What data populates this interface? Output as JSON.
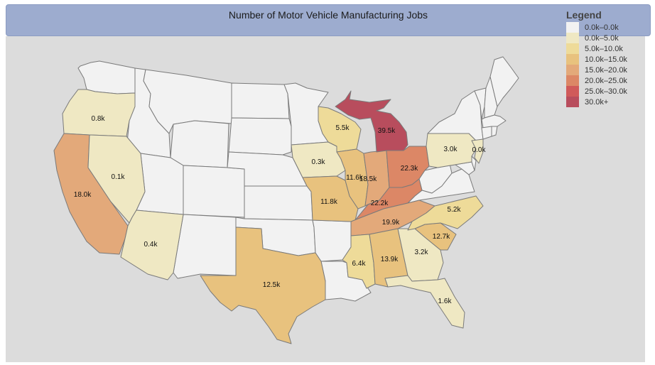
{
  "title": "Number of Motor Vehicle Manufacturing Jobs",
  "colors": {
    "none": "#f2f2f2",
    "b0": "#efe8c3",
    "b1": "#eedb99",
    "b2": "#e8c27e",
    "b3": "#e3a97a",
    "b4": "#dc8766",
    "b5": "#d05a5a",
    "b6": "#b84d5d"
  },
  "legend": {
    "title": "Legend",
    "items": [
      {
        "label": "0.0k–0.0k",
        "color": "#f2f2f2"
      },
      {
        "label": "0.0k–5.0k",
        "color": "#efe8c3"
      },
      {
        "label": "5.0k–10.0k",
        "color": "#eedb99"
      },
      {
        "label": "10.0k–15.0k",
        "color": "#e8c27e"
      },
      {
        "label": "15.0k–20.0k",
        "color": "#e3a97a"
      },
      {
        "label": "20.0k–25.0k",
        "color": "#dc8766"
      },
      {
        "label": "25.0k–30.0k",
        "color": "#d05a5a"
      },
      {
        "label": "30.0k+",
        "color": "#b84d5d"
      }
    ]
  },
  "states": [
    {
      "id": "OR",
      "label": "0.8k",
      "value": 0.8
    },
    {
      "id": "CA",
      "label": "18.0k",
      "value": 18.0
    },
    {
      "id": "NV",
      "label": "0.1k",
      "value": 0.1
    },
    {
      "id": "AZ",
      "label": "0.4k",
      "value": 0.4
    },
    {
      "id": "TX",
      "label": "12.5k",
      "value": 12.5
    },
    {
      "id": "IA",
      "label": "0.3k",
      "value": 0.3
    },
    {
      "id": "MO",
      "label": "11.8k",
      "value": 11.8
    },
    {
      "id": "WI",
      "label": "5.5k",
      "value": 5.5
    },
    {
      "id": "IL",
      "label": "11.6k",
      "value": 11.6
    },
    {
      "id": "IN",
      "label": "18.5k",
      "value": 18.5
    },
    {
      "id": "MI",
      "label": "39.5k",
      "value": 39.5
    },
    {
      "id": "OH",
      "label": "22.3k",
      "value": 22.3
    },
    {
      "id": "KY",
      "label": "22.2k",
      "value": 22.2
    },
    {
      "id": "TN",
      "label": "19.9k",
      "value": 19.9
    },
    {
      "id": "MS",
      "label": "6.4k",
      "value": 6.4
    },
    {
      "id": "AL",
      "label": "13.9k",
      "value": 13.9
    },
    {
      "id": "GA",
      "label": "3.2k",
      "value": 3.2
    },
    {
      "id": "FL",
      "label": "1.6k",
      "value": 1.6
    },
    {
      "id": "SC",
      "label": "12.7k",
      "value": 12.7
    },
    {
      "id": "NC",
      "label": "5.2k",
      "value": 5.2
    },
    {
      "id": "PA",
      "label": "3.0k",
      "value": 3.0
    },
    {
      "id": "NJ",
      "label": "0.0k",
      "value": 0.0
    }
  ]
}
